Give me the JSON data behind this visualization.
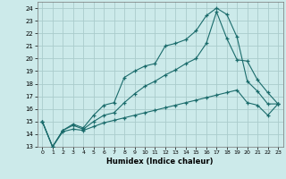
{
  "xlabel": "Humidex (Indice chaleur)",
  "background_color": "#cceaea",
  "grid_color": "#aacccc",
  "line_color": "#1a6b6b",
  "xlim": [
    -0.5,
    23.5
  ],
  "ylim": [
    13,
    24.5
  ],
  "xticks": [
    0,
    1,
    2,
    3,
    4,
    5,
    6,
    7,
    8,
    9,
    10,
    11,
    12,
    13,
    14,
    15,
    16,
    17,
    18,
    19,
    20,
    21,
    22,
    23
  ],
  "yticks": [
    13,
    14,
    15,
    16,
    17,
    18,
    19,
    20,
    21,
    22,
    23,
    24
  ],
  "line1_x": [
    0,
    1,
    2,
    3,
    4,
    5,
    6,
    7,
    8,
    9,
    10,
    11,
    12,
    13,
    14,
    15,
    16,
    17,
    18,
    19,
    20,
    21,
    22,
    23
  ],
  "line1_y": [
    15,
    13,
    14.3,
    14.8,
    14.5,
    15.5,
    16.3,
    16.5,
    18.5,
    19.0,
    19.4,
    19.6,
    21.0,
    21.2,
    21.5,
    22.2,
    23.4,
    24.0,
    23.5,
    21.7,
    18.2,
    17.4,
    16.4,
    16.4
  ],
  "line2_x": [
    0,
    1,
    2,
    3,
    4,
    5,
    6,
    7,
    8,
    9,
    10,
    11,
    12,
    13,
    14,
    15,
    16,
    17,
    18,
    19,
    20,
    21,
    22,
    23
  ],
  "line2_y": [
    15,
    13,
    14.3,
    14.7,
    14.4,
    15.0,
    15.5,
    15.7,
    16.5,
    17.2,
    17.8,
    18.2,
    18.7,
    19.1,
    19.6,
    20.0,
    21.2,
    23.7,
    21.6,
    19.9,
    19.8,
    18.3,
    17.3,
    16.4
  ],
  "line3_x": [
    0,
    1,
    2,
    3,
    4,
    5,
    6,
    7,
    8,
    9,
    10,
    11,
    12,
    13,
    14,
    15,
    16,
    17,
    18,
    19,
    20,
    21,
    22,
    23
  ],
  "line3_y": [
    15,
    13,
    14.2,
    14.4,
    14.3,
    14.6,
    14.9,
    15.1,
    15.3,
    15.5,
    15.7,
    15.9,
    16.1,
    16.3,
    16.5,
    16.7,
    16.9,
    17.1,
    17.3,
    17.5,
    16.5,
    16.3,
    15.5,
    16.4
  ]
}
